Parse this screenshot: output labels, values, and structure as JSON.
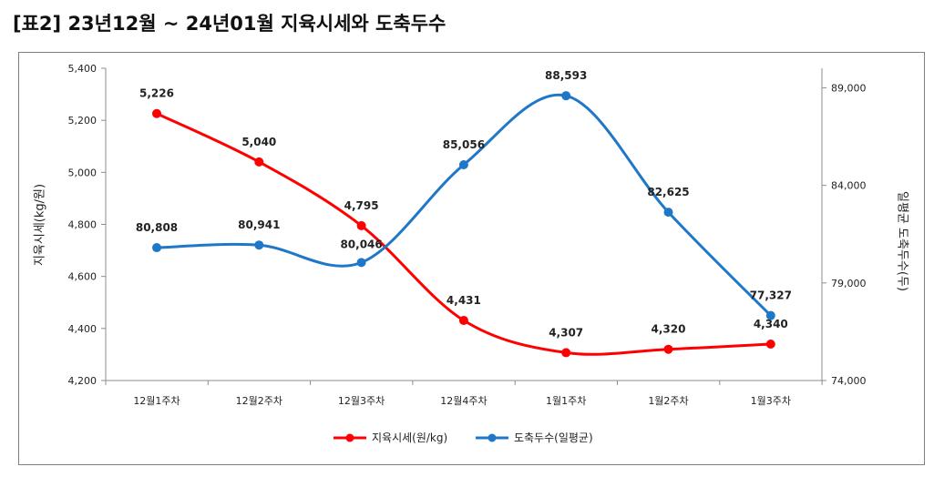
{
  "title": "[표2]  23년12월  ~  24년01월  지육시세와  도축두수",
  "chart_data": {
    "type": "line",
    "categories": [
      "12월1주차",
      "12월2주차",
      "12월3주차",
      "12월4주차",
      "1월1주차",
      "1월2주차",
      "1월3주차"
    ],
    "series": [
      {
        "name": "지육시세(원/kg)",
        "axis": "left",
        "color": "#ff0000",
        "values": [
          5226,
          5040,
          4795,
          4431,
          4307,
          4320,
          4340
        ],
        "labels": [
          "5,226",
          "5,040",
          "4,795",
          "4,431",
          "4,307",
          "4,320",
          "4,340"
        ]
      },
      {
        "name": "도축두수(일평균)",
        "axis": "right",
        "color": "#1f77c8",
        "values": [
          80808,
          80941,
          80046,
          85056,
          88593,
          82625,
          77327
        ],
        "labels": [
          "80,808",
          "80,941",
          "80,046",
          "85,056",
          "88,593",
          "82,625",
          "77,327"
        ]
      }
    ],
    "y_left": {
      "label": "지육시세(kg/원)",
      "range": [
        4200,
        5400
      ],
      "ticks": [
        4200,
        4400,
        4600,
        4800,
        5000,
        5200,
        5400
      ],
      "tick_labels": [
        "4,200",
        "4,400",
        "4,600",
        "4,800",
        "5,000",
        "5,200",
        "5,400"
      ]
    },
    "y_right": {
      "label": "일평균 도축두수(두)",
      "range": [
        74000,
        90000
      ],
      "ticks": [
        74000,
        79000,
        84000,
        89000
      ],
      "tick_labels": [
        "74,000",
        "79,000",
        "84,000",
        "89,000"
      ]
    },
    "grid": false,
    "legend": "bottom"
  }
}
